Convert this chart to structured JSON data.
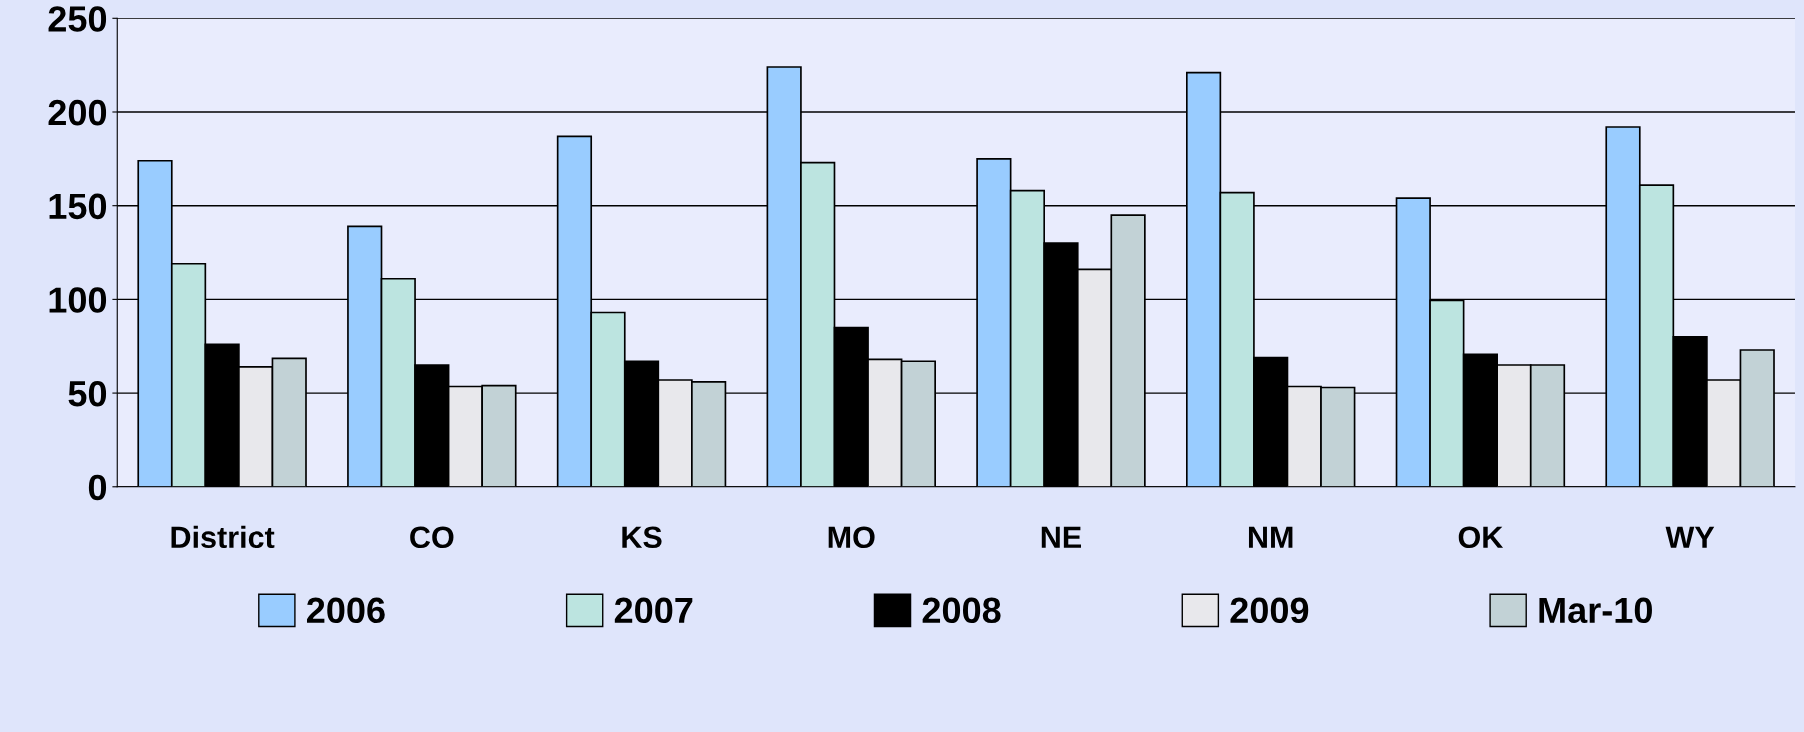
{
  "chart_data": {
    "type": "bar",
    "categories": [
      "District",
      "CO",
      "KS",
      "MO",
      "NE",
      "NM",
      "OK",
      "WY"
    ],
    "series": [
      {
        "name": "2006",
        "color": "#99ccff",
        "values": [
          174,
          139,
          187,
          224,
          175,
          221,
          154,
          192
        ]
      },
      {
        "name": "2007",
        "color": "#bce4e0",
        "values": [
          119,
          111,
          93,
          173,
          158,
          157,
          99.5,
          161
        ]
      },
      {
        "name": "2008",
        "color": "#000000",
        "values": [
          76,
          65,
          67,
          85,
          130,
          69,
          70.7,
          80
        ]
      },
      {
        "name": "2009",
        "color": "#e8e8ec",
        "values": [
          64,
          53.5,
          57,
          68,
          116,
          53.5,
          65,
          57
        ]
      },
      {
        "name": "Mar-10",
        "color": "#c2d2d6",
        "values": [
          68.5,
          54,
          56,
          67,
          145,
          53,
          65,
          73
        ]
      }
    ],
    "ylim": [
      0,
      250
    ],
    "yticks": [
      0,
      50,
      100,
      150,
      200,
      250
    ],
    "grid": "y",
    "legend": "bottom"
  }
}
